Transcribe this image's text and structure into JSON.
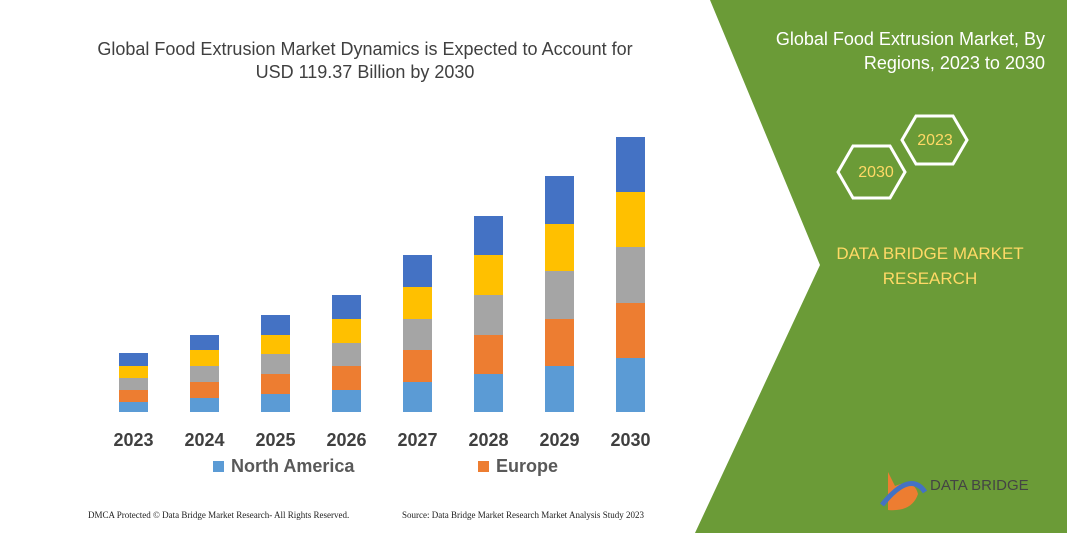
{
  "chart_data": {
    "type": "stacked-bar",
    "title": "Global Food Extrusion Market Dynamics is Expected to Account for USD 119.37 Billion by 2030",
    "categories": [
      "2023",
      "2024",
      "2025",
      "2026",
      "2027",
      "2028",
      "2029",
      "2030"
    ],
    "series": [
      {
        "name": "North America",
        "color": "#5b9bd5",
        "values": [
          10,
          14,
          18,
          22,
          30,
          38,
          46,
          54
        ]
      },
      {
        "name": "Europe",
        "color": "#ed7d31",
        "values": [
          12,
          16,
          20,
          24,
          32,
          39,
          47,
          55
        ]
      },
      {
        "color": "#a5a5a5",
        "values": [
          12,
          16,
          20,
          23,
          31,
          40,
          48,
          56
        ]
      },
      {
        "color": "#ffc000",
        "values": [
          12,
          16,
          19,
          24,
          32,
          40,
          47,
          55
        ]
      },
      {
        "color": "#4472c4",
        "values": [
          13,
          15,
          20,
          24,
          32,
          39,
          48,
          55
        ]
      }
    ],
    "ylim": [
      0,
      300
    ]
  },
  "panel": {
    "title": "Global Food Extrusion Market, By Regions, 2023 to 2030",
    "hex_a": "2023",
    "hex_b": "2030",
    "brand": "DATA BRIDGE MARKET RESEARCH",
    "logo": "DATA BRIDGE"
  },
  "footer": {
    "left": "DMCA Protected © Data Bridge Market Research- All Rights Reserved.",
    "right": "Source: Data Bridge Market Research Market Analysis Study 2023"
  }
}
